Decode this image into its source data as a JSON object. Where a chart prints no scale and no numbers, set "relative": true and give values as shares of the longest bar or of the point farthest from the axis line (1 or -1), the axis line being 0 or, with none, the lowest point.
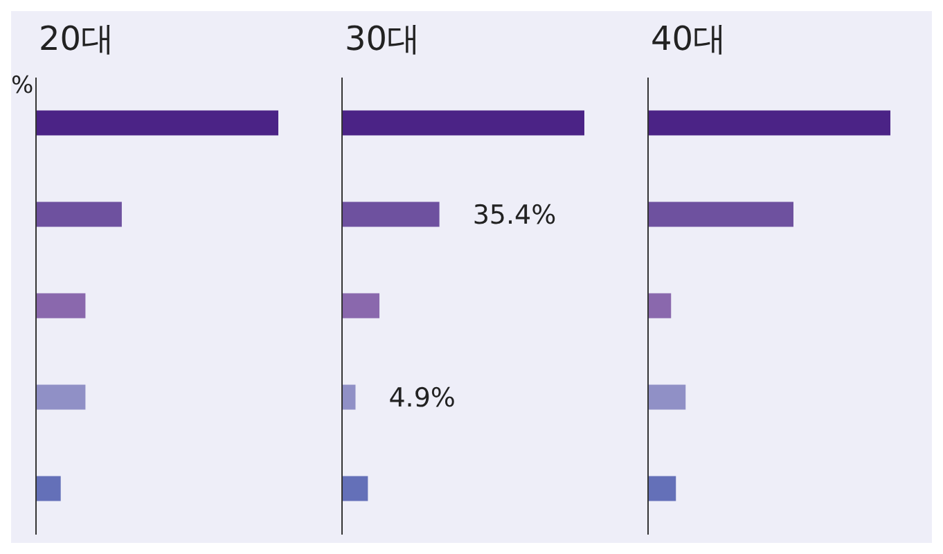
{
  "chart_data": [
    {
      "type": "bar",
      "orientation": "horizontal",
      "relative": true,
      "title": "20대",
      "categories": [
        null,
        null,
        null,
        null,
        null
      ],
      "values": [
        1,
        0.354,
        0.204,
        0.204,
        0.102
      ],
      "colors": [
        "#4b2386",
        "#6e519f",
        "#8a68ad",
        "#9090c6",
        "#6470b8"
      ],
      "annotations": [
        "%"
      ]
    },
    {
      "type": "bar",
      "orientation": "horizontal",
      "tick_labels": false,
      "title": "30대",
      "categories": [
        null,
        null,
        null,
        null,
        null
      ],
      "values": [
        88.1,
        35.4,
        13.6,
        4.9,
        9.4
      ],
      "colors": [
        "#4b2386",
        "#6e519f",
        "#8a68ad",
        "#9090c6",
        "#6470b8"
      ],
      "value_labels": [
        null,
        "35.4%",
        null,
        "4.9%",
        null
      ]
    },
    {
      "type": "bar",
      "orientation": "horizontal",
      "relative": true,
      "title": "40대",
      "categories": [
        null,
        null,
        null,
        null,
        null
      ],
      "values": [
        1,
        0.6,
        0.095,
        0.155,
        0.115
      ],
      "colors": [
        "#4b2386",
        "#6e519f",
        "#8a68ad",
        "#9090c6",
        "#6470b8"
      ]
    }
  ]
}
